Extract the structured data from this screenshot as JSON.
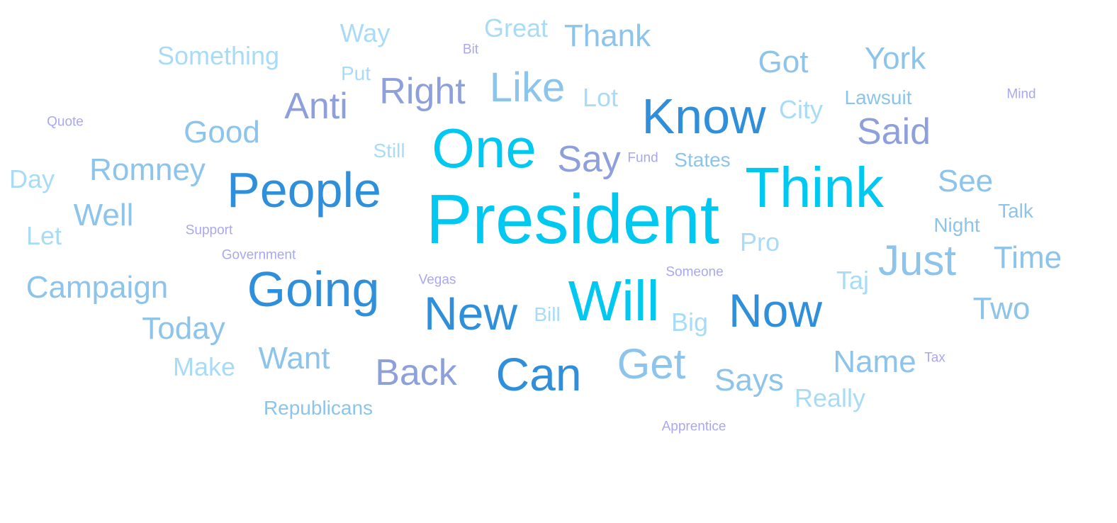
{
  "words": [
    {
      "text": "President",
      "weight": 100,
      "color_group": "c1"
    },
    {
      "text": "Think",
      "weight": 82,
      "color_group": "c1"
    },
    {
      "text": "One",
      "weight": 80,
      "color_group": "c1"
    },
    {
      "text": "Will",
      "weight": 80,
      "color_group": "c1"
    },
    {
      "text": "People",
      "weight": 70,
      "color_group": "c2"
    },
    {
      "text": "Going",
      "weight": 70,
      "color_group": "c2"
    },
    {
      "text": "Know",
      "weight": 70,
      "color_group": "c2"
    },
    {
      "text": "Now",
      "weight": 68,
      "color_group": "c2"
    },
    {
      "text": "New",
      "weight": 68,
      "color_group": "c2"
    },
    {
      "text": "Can",
      "weight": 68,
      "color_group": "c2"
    },
    {
      "text": "Just",
      "weight": 62,
      "color_group": "c4"
    },
    {
      "text": "Get",
      "weight": 60,
      "color_group": "c4"
    },
    {
      "text": "Like",
      "weight": 60,
      "color_group": "c4"
    },
    {
      "text": "Right",
      "weight": 54,
      "color_group": "c3"
    },
    {
      "text": "Anti",
      "weight": 54,
      "color_group": "c3"
    },
    {
      "text": "Back",
      "weight": 54,
      "color_group": "c3"
    },
    {
      "text": "Said",
      "weight": 54,
      "color_group": "c3"
    },
    {
      "text": "Say",
      "weight": 54,
      "color_group": "c3"
    },
    {
      "text": "Good",
      "weight": 46,
      "color_group": "c4"
    },
    {
      "text": "Campaign",
      "weight": 46,
      "color_group": "c4"
    },
    {
      "text": "Romney",
      "weight": 46,
      "color_group": "c4"
    },
    {
      "text": "Today",
      "weight": 46,
      "color_group": "c4"
    },
    {
      "text": "Want",
      "weight": 46,
      "color_group": "c4"
    },
    {
      "text": "Name",
      "weight": 46,
      "color_group": "c4"
    },
    {
      "text": "Thank",
      "weight": 46,
      "color_group": "c4"
    },
    {
      "text": "Got",
      "weight": 46,
      "color_group": "c4"
    },
    {
      "text": "York",
      "weight": 46,
      "color_group": "c4"
    },
    {
      "text": "Time",
      "weight": 46,
      "color_group": "c4"
    },
    {
      "text": "Two",
      "weight": 46,
      "color_group": "c4"
    },
    {
      "text": "Well",
      "weight": 46,
      "color_group": "c4"
    },
    {
      "text": "Says",
      "weight": 46,
      "color_group": "c4"
    },
    {
      "text": "See",
      "weight": 46,
      "color_group": "c4"
    },
    {
      "text": "Something",
      "weight": 38,
      "color_group": "c5"
    },
    {
      "text": "Great",
      "weight": 38,
      "color_group": "c5"
    },
    {
      "text": "Make",
      "weight": 38,
      "color_group": "c5"
    },
    {
      "text": "Really",
      "weight": 38,
      "color_group": "c5"
    },
    {
      "text": "Lot",
      "weight": 38,
      "color_group": "c5"
    },
    {
      "text": "Way",
      "weight": 38,
      "color_group": "c5"
    },
    {
      "text": "Let",
      "weight": 38,
      "color_group": "c5"
    },
    {
      "text": "Day",
      "weight": 38,
      "color_group": "c5"
    },
    {
      "text": "Big",
      "weight": 38,
      "color_group": "c5"
    },
    {
      "text": "Pro",
      "weight": 38,
      "color_group": "c5"
    },
    {
      "text": "City",
      "weight": 38,
      "color_group": "c5"
    },
    {
      "text": "Taj",
      "weight": 38,
      "color_group": "c5"
    },
    {
      "text": "Republicans",
      "weight": 30,
      "color_group": "c4"
    },
    {
      "text": "States",
      "weight": 30,
      "color_group": "c4"
    },
    {
      "text": "Lawsuit",
      "weight": 30,
      "color_group": "c4"
    },
    {
      "text": "Night",
      "weight": 30,
      "color_group": "c4"
    },
    {
      "text": "Talk",
      "weight": 30,
      "color_group": "c4"
    },
    {
      "text": "Bill",
      "weight": 30,
      "color_group": "c5"
    },
    {
      "text": "Still",
      "weight": 30,
      "color_group": "c5"
    },
    {
      "text": "Put",
      "weight": 30,
      "color_group": "c5"
    },
    {
      "text": "Quote",
      "weight": 20,
      "color_group": "c6"
    },
    {
      "text": "Support",
      "weight": 20,
      "color_group": "c6"
    },
    {
      "text": "Government",
      "weight": 20,
      "color_group": "c6"
    },
    {
      "text": "Vegas",
      "weight": 20,
      "color_group": "c6"
    },
    {
      "text": "Someone",
      "weight": 20,
      "color_group": "c6"
    },
    {
      "text": "Apprentice",
      "weight": 20,
      "color_group": "c6"
    },
    {
      "text": "Fund",
      "weight": 20,
      "color_group": "c6"
    },
    {
      "text": "Bit",
      "weight": 20,
      "color_group": "c6"
    },
    {
      "text": "Mind",
      "weight": 20,
      "color_group": "c6"
    },
    {
      "text": "Tax",
      "weight": 20,
      "color_group": "c6"
    }
  ]
}
